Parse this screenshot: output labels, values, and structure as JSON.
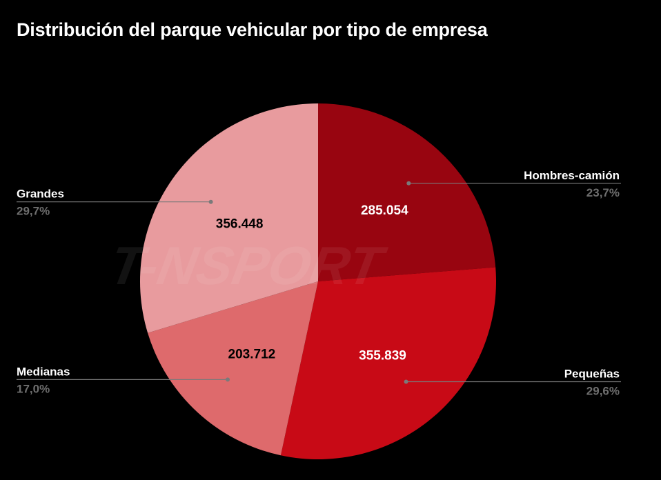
{
  "chart_data": {
    "type": "pie",
    "title": "Distribución del parque vehicular por tipo de empresa",
    "start_angle_deg": 0,
    "direction": "clockwise",
    "slices": [
      {
        "name": "Hombres-camión",
        "value": 285054,
        "value_label": "285.054",
        "percent_label": "23,7%",
        "color": "#980510",
        "value_text_color": "#ffffff",
        "legend_side": "right"
      },
      {
        "name": "Pequeñas",
        "value": 355839,
        "value_label": "355.839",
        "percent_label": "29,6%",
        "color": "#c80a16",
        "value_text_color": "#ffffff",
        "legend_side": "right"
      },
      {
        "name": "Medianas",
        "value": 203712,
        "value_label": "203.712",
        "percent_label": "17,0%",
        "color": "#de6a6c",
        "value_text_color": "#000000",
        "legend_side": "left"
      },
      {
        "name": "Grandes",
        "value": 356448,
        "value_label": "356.448",
        "percent_label": "29,7%",
        "color": "#e89b9e",
        "value_text_color": "#000000",
        "legend_side": "left"
      }
    ]
  },
  "watermark": {
    "text": "T-NSPORT"
  }
}
